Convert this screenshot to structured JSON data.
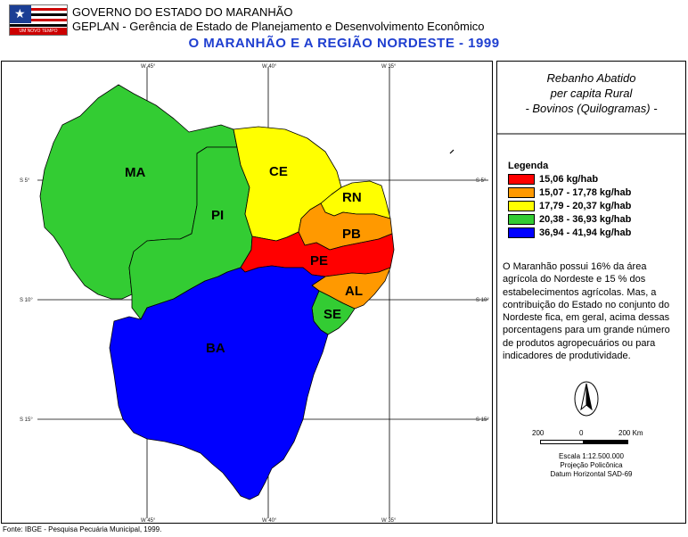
{
  "header": {
    "government": "GOVERNO DO ESTADO DO MARANHÃO",
    "agency": "GEPLAN - Gerência de Estado de Planejamento e Desenvolvimento Econômico",
    "title": "O MARANHÃO E A REGIÃO NORDESTE - 1999"
  },
  "logo": {
    "motto": "UM NOVO TEMPO",
    "icon": "maranhao-flag"
  },
  "map": {
    "top_labels": [
      "W 45°",
      "W 40°",
      "W 35°"
    ],
    "bottom_labels": [
      "W 45°",
      "W 40°",
      "W 35°"
    ],
    "left_labels": [
      "S 5°",
      "S 10°",
      "S 15°"
    ],
    "right_labels": [
      "S 5°",
      "S 10°",
      "S 15°"
    ],
    "states": [
      {
        "code": "MA",
        "class": 3
      },
      {
        "code": "PI",
        "class": 3
      },
      {
        "code": "CE",
        "class": 2
      },
      {
        "code": "RN",
        "class": 2
      },
      {
        "code": "PB",
        "class": 1
      },
      {
        "code": "PE",
        "class": 0
      },
      {
        "code": "AL",
        "class": 1
      },
      {
        "code": "SE",
        "class": 3
      },
      {
        "code": "BA",
        "class": 4
      }
    ]
  },
  "side": {
    "title_lines": [
      "Rebanho Abatido",
      "per capita Rural",
      "- Bovinos (Quilogramas) -"
    ],
    "legend_title": "Legenda",
    "legend": [
      {
        "label": "15,06 kg/hab",
        "color": "#ff0000"
      },
      {
        "label": "15,07 - 17,78 kg/hab",
        "color": "#ff9900"
      },
      {
        "label": "17,79 - 20,37 kg/hab",
        "color": "#ffff00"
      },
      {
        "label": "20,38 - 36,93 kg/hab",
        "color": "#33cc33"
      },
      {
        "label": "36,94 - 41,94 kg/hab",
        "color": "#0000ff"
      }
    ],
    "description": "O Maranhão possui 16% da área agrícola do Nordeste e 15 % dos estabelecimentos agrícolas. Mas, a contribuição do Estado no conjunto do Nordeste fica, em geral, acima dessas porcentagens para um grande número de produtos agropecuários ou para indicadores de produtividade.",
    "north_icon": "north-arrow-icon",
    "scale_bar": {
      "left": "200",
      "center": "0",
      "right": "200 Km"
    },
    "scale_text": [
      "Escala 1:12.500.000",
      "Projeção Policônica",
      "Datum Horizontal SAD-69"
    ]
  },
  "footer": {
    "source": "Fonte: IBGE - Pesquisa Pecuária Municipal, 1999."
  }
}
